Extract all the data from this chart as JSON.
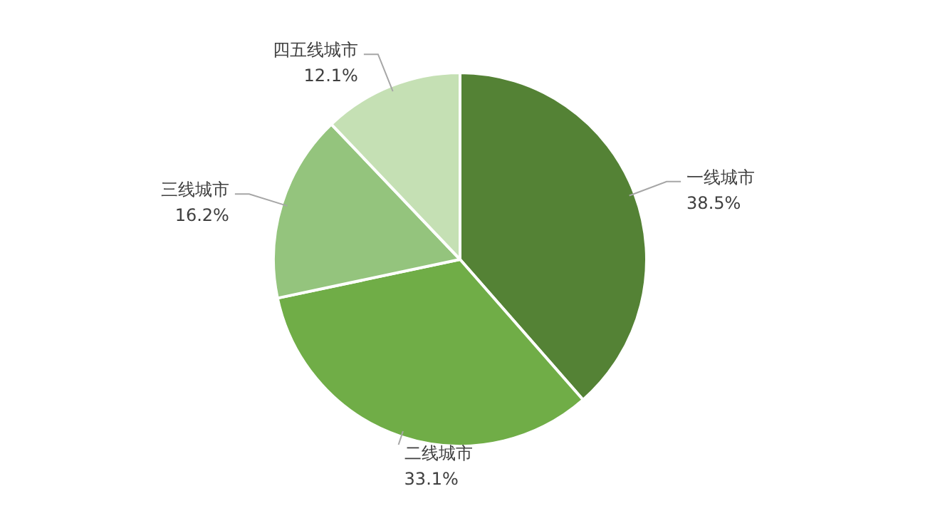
{
  "chart_data": {
    "type": "pie",
    "categories": [
      "一线城市",
      "二线城市",
      "三线城市",
      "四五线城市"
    ],
    "values": [
      38.5,
      33.1,
      16.2,
      12.1
    ],
    "value_labels": [
      "38.5%",
      "33.1%",
      "16.2%",
      "12.1%"
    ],
    "colors": [
      "#548235",
      "#70ad47",
      "#94c47d",
      "#c5e0b4"
    ],
    "legend": false
  }
}
